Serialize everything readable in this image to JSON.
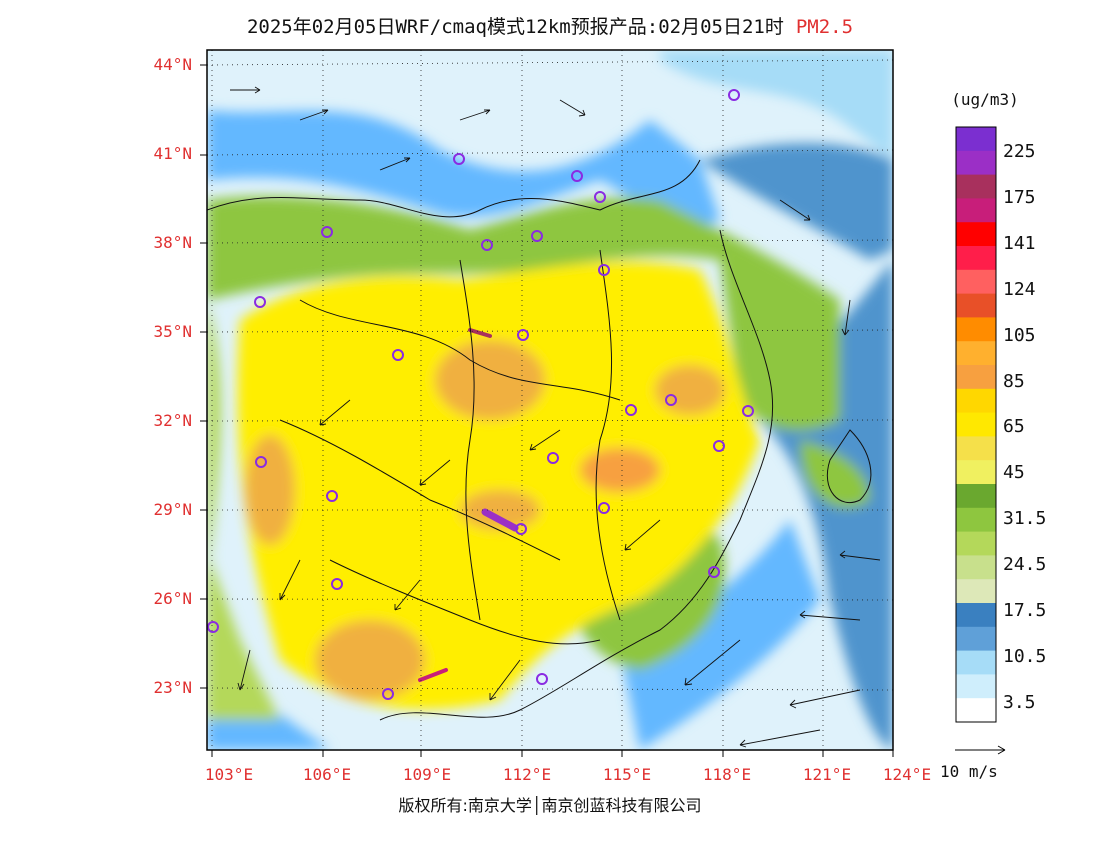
{
  "title": {
    "main": "2025年02月05日WRF/cmaq模式12km预报产品:02月05日21时",
    "variable": "PM2.5"
  },
  "map": {
    "lat_labels": [
      "44°N",
      "41°N",
      "38°N",
      "35°N",
      "32°N",
      "29°N",
      "26°N",
      "23°N"
    ],
    "lon_labels": [
      "103°E",
      "106°E",
      "109°E",
      "112°E",
      "115°E",
      "118°E",
      "121°E",
      "124°E"
    ],
    "colors": {
      "ocean_dark": "#4f94cd",
      "ocean_mid": "#63b8ff",
      "light_blue": "#a6dcf7",
      "pale": "#dff2fb",
      "yellow": "#ffee00",
      "orange": "#f0b040",
      "green": "#8ec63f"
    }
  },
  "colorbar": {
    "unit": "(ug/m3)",
    "labels": [
      "225",
      "175",
      "141",
      "124",
      "105",
      "85",
      "65",
      "45",
      "31.5",
      "24.5",
      "17.5",
      "10.5",
      "3.5"
    ],
    "colors": [
      "#7b2fd0",
      "#9b2fc6",
      "#a8305d",
      "#c81e7a",
      "#ff0000",
      "#ff1e4a",
      "#ff6060",
      "#e85028",
      "#ff8c00",
      "#ffb02e",
      "#f7a040",
      "#ffd700",
      "#ffe800",
      "#f5e04a",
      "#f0f060",
      "#6aa82f",
      "#8ec63f",
      "#b4d85a",
      "#c8e08c",
      "#dde8b8",
      "#3a80c0",
      "#5fa0d8",
      "#a6dcf7",
      "#cfeefc",
      "#ffffff"
    ]
  },
  "wind_arrow": {
    "label": "10 m/s"
  },
  "footer": {
    "text": "版权所有:南京大学│南京创蓝科技有限公司"
  }
}
